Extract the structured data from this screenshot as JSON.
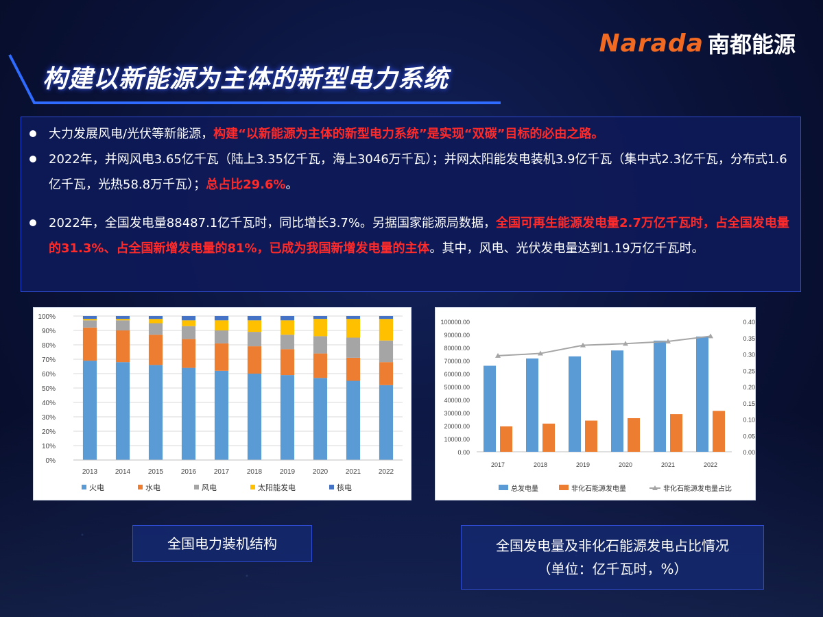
{
  "logo": {
    "en": "Narada",
    "cn": "南都能源"
  },
  "title": "构建以新能源为主体的新型电力系统",
  "bullets": [
    {
      "parts": [
        {
          "t": "大力发展风电/光伏等新能源，",
          "red": false
        },
        {
          "t": "构建“以新能源为主体的新型电力系统”是实现“双碳”目标的必由之路。",
          "red": true
        }
      ]
    },
    {
      "parts": [
        {
          "t": "2022年，并网风电3.65亿千瓦（陆上3.35亿千瓦，海上3046万千瓦）；并网太阳能发电装机3.9亿千瓦（集中式2.3亿千瓦，分布式1.6亿千瓦，光热58.8万千瓦）；",
          "red": false
        },
        {
          "t": "总占比29.6%",
          "red": true
        },
        {
          "t": "。",
          "red": false
        }
      ]
    },
    {
      "parts": [
        {
          "t": "2022年，全国发电量88487.1亿千瓦时，同比增长3.7%。另据国家能源局数据，",
          "red": false
        },
        {
          "t": "全国可再生能源发电量2.7万亿千瓦时，占全国发电量的31.3%、占全国新增发电量的81%，已成为我国新增发电量的主体",
          "red": true
        },
        {
          "t": "。其中，风电、光伏发电量达到1.19万亿千瓦时。",
          "red": false
        }
      ]
    }
  ],
  "captions": {
    "left": "全国电力装机结构",
    "right_line1": "全国发电量及非化石能源发电占比情况",
    "right_line2": "（单位：亿千瓦时，%）"
  },
  "chart_data": [
    {
      "type": "bar",
      "stacked": true,
      "categories": [
        "2013",
        "2014",
        "2015",
        "2016",
        "2017",
        "2018",
        "2019",
        "2020",
        "2021",
        "2022"
      ],
      "ylim": [
        0,
        1
      ],
      "yticks": [
        "0%",
        "10%",
        "20%",
        "30%",
        "40%",
        "50%",
        "60%",
        "70%",
        "80%",
        "90%",
        "100%"
      ],
      "legend_position": "bottom",
      "series": [
        {
          "name": "火电",
          "color": "#5b9bd5",
          "values": [
            0.69,
            0.68,
            0.66,
            0.64,
            0.62,
            0.6,
            0.59,
            0.57,
            0.55,
            0.52
          ]
        },
        {
          "name": "水电",
          "color": "#ed7d31",
          "values": [
            0.23,
            0.22,
            0.21,
            0.2,
            0.19,
            0.19,
            0.18,
            0.17,
            0.16,
            0.16
          ]
        },
        {
          "name": "风电",
          "color": "#a5a5a5",
          "values": [
            0.05,
            0.07,
            0.08,
            0.09,
            0.09,
            0.1,
            0.1,
            0.12,
            0.14,
            0.15
          ]
        },
        {
          "name": "太阳能发电",
          "color": "#ffc000",
          "values": [
            0.01,
            0.01,
            0.03,
            0.04,
            0.07,
            0.08,
            0.1,
            0.12,
            0.13,
            0.15
          ]
        },
        {
          "name": "核电",
          "color": "#4472c4",
          "values": [
            0.02,
            0.02,
            0.02,
            0.03,
            0.03,
            0.03,
            0.03,
            0.02,
            0.02,
            0.02
          ]
        }
      ],
      "grid": true
    },
    {
      "type": "bar",
      "categories": [
        "2017",
        "2018",
        "2019",
        "2020",
        "2021",
        "2022"
      ],
      "ylim": [
        0,
        100000
      ],
      "yticks": [
        "0.00",
        "10000.00",
        "20000.00",
        "30000.00",
        "40000.00",
        "50000.00",
        "60000.00",
        "70000.00",
        "80000.00",
        "90000.00",
        "100000.00"
      ],
      "y2lim": [
        0,
        0.4
      ],
      "y2ticks": [
        "0.00",
        "0.05",
        "0.10",
        "0.15",
        "0.20",
        "0.25",
        "0.30",
        "0.35",
        "0.40"
      ],
      "legend_position": "bottom",
      "series": [
        {
          "name": "总发电量",
          "kind": "bar",
          "color": "#5b9bd5",
          "values": [
            66044,
            71661,
            73253,
            77791,
            85342,
            88487
          ]
        },
        {
          "name": "非化石能源发电量",
          "kind": "bar",
          "color": "#ed7d31",
          "values": [
            19500,
            21634,
            23930,
            25800,
            28900,
            31400
          ]
        },
        {
          "name": "非化石能源发电量占比",
          "kind": "line",
          "axis": "right",
          "color": "#a5a5a5",
          "values": [
            0.295,
            0.302,
            0.327,
            0.332,
            0.339,
            0.355
          ]
        }
      ],
      "grid": false
    }
  ]
}
